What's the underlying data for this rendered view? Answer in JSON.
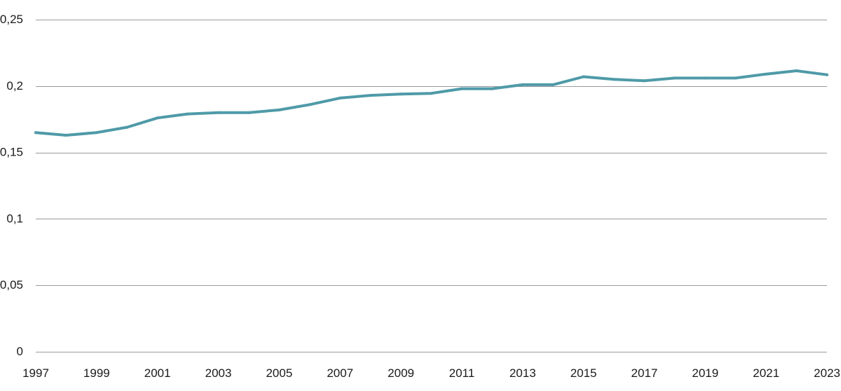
{
  "chart_data": {
    "type": "line",
    "title": "",
    "xlabel": "",
    "ylabel": "",
    "x": [
      1997,
      1998,
      1999,
      2000,
      2001,
      2002,
      2003,
      2004,
      2005,
      2006,
      2007,
      2008,
      2009,
      2010,
      2011,
      2012,
      2013,
      2014,
      2015,
      2016,
      2017,
      2018,
      2019,
      2020,
      2021,
      2022,
      2023
    ],
    "series": [
      {
        "values": [
          0.165,
          0.163,
          0.165,
          0.169,
          0.176,
          0.179,
          0.18,
          0.18,
          0.182,
          0.186,
          0.191,
          0.193,
          0.194,
          0.1945,
          0.198,
          0.198,
          0.201,
          0.201,
          0.207,
          0.205,
          0.204,
          0.206,
          0.206,
          0.206,
          0.209,
          0.2115,
          0.2085
        ],
        "color": "#4f9aa8"
      }
    ],
    "ylim": [
      0,
      0.25
    ],
    "y_ticks": [
      {
        "value": 0,
        "label": "0"
      },
      {
        "value": 0.05,
        "label": "0,05"
      },
      {
        "value": 0.1,
        "label": "0,1"
      },
      {
        "value": 0.15,
        "label": "0,15"
      },
      {
        "value": 0.2,
        "label": "0,2"
      },
      {
        "value": 0.25,
        "label": "0,25"
      }
    ],
    "x_ticks": [
      1997,
      1999,
      2001,
      2003,
      2005,
      2007,
      2009,
      2011,
      2013,
      2015,
      2017,
      2019,
      2021,
      2023
    ],
    "grid": true,
    "legend": "none"
  }
}
